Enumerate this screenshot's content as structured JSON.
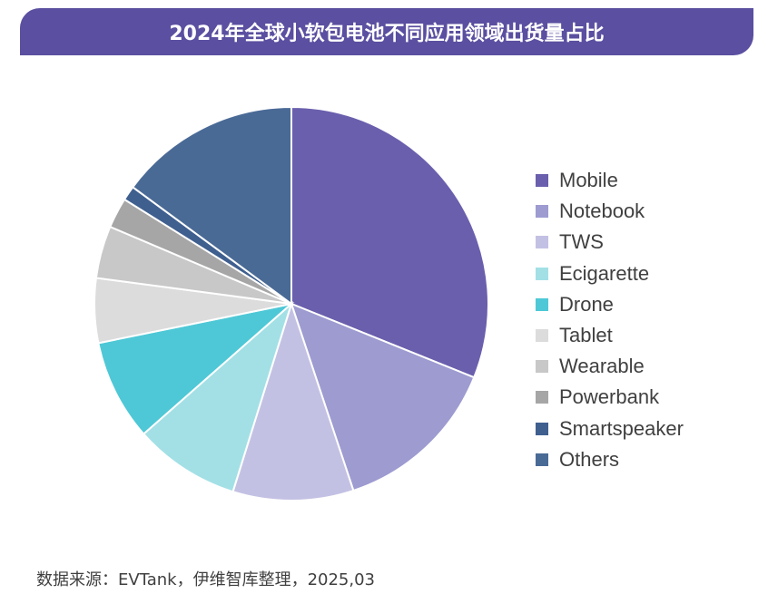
{
  "chart_data": {
    "type": "pie",
    "title": "2024年全球小软包电池不同应用领域出货量占比",
    "legend_position": "right",
    "categories": [
      "Mobile",
      "Notebook",
      "TWS",
      "Ecigarette",
      "Drone",
      "Tablet",
      "Wearable",
      "Powerbank",
      "Smartspeaker",
      "Others"
    ],
    "values": [
      31.1,
      13.8,
      9.9,
      8.7,
      8.3,
      5.3,
      4.3,
      2.5,
      1.2,
      14.9
    ],
    "colors": [
      "#6a5fad",
      "#9d9bd0",
      "#c3c1e3",
      "#a3e0e6",
      "#4ec8d6",
      "#dcdcdc",
      "#c8c8c8",
      "#a6a6a6",
      "#3f5f8f",
      "#4a6a96"
    ]
  },
  "source": "数据来源：EVTank，伊维智库整理，2025,03"
}
